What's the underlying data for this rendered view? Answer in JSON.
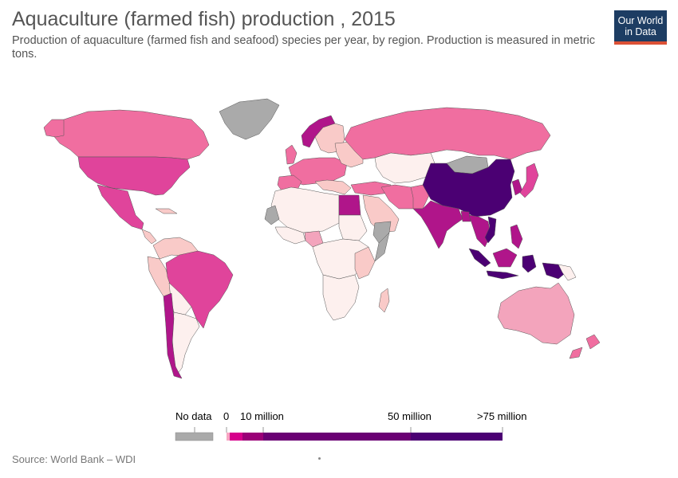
{
  "header": {
    "title": "Aquaculture (farmed fish) production , 2015",
    "subtitle": "Production of aquaculture (farmed fish and seafood) species per year, by region. Production is measured in metric tons."
  },
  "logo": {
    "line1": "Our World",
    "line2": "in Data"
  },
  "legend": {
    "no_data_label": "No data",
    "ticks": [
      "0",
      "10 million",
      "50 million",
      ">75 million"
    ],
    "no_data_color": "#aaaaaa",
    "scale_colors": [
      "#f7a5c2",
      "#d6008b",
      "#9a0077",
      "#6a0073",
      "#4b0073"
    ]
  },
  "colors": {
    "very_low": "#fdf0ee",
    "low": "#f9cac8",
    "low_mid": "#f3a4bc",
    "mid": "#f06ea0",
    "mid_high": "#e0449b",
    "high": "#b0158a",
    "very_high": "#4b0073",
    "no_data": "#aaaaaa",
    "accent": "#dc5136",
    "logo_bg": "#1d3d63"
  },
  "source": "Source: World Bank – WDI"
}
